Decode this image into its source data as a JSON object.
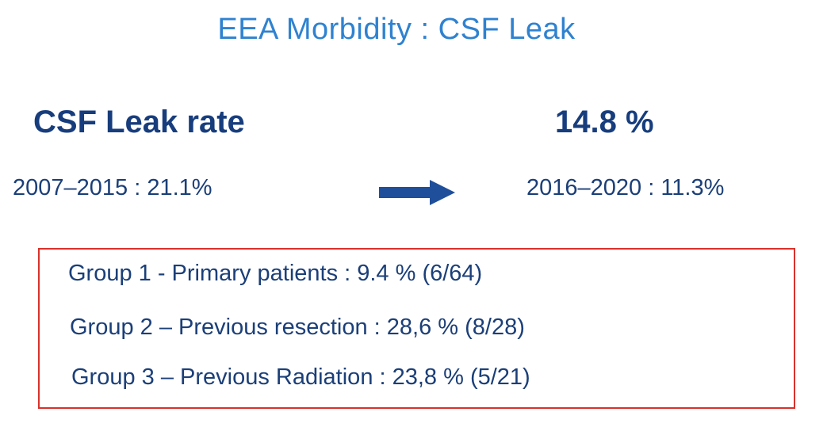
{
  "slide": {
    "title": "EEA Morbidity : CSF Leak",
    "rate_label": "CSF Leak rate",
    "rate_value": "14.8 %",
    "period_before": "2007–2015  : 21.1%",
    "period_after": "2016–2020 : 11.3%",
    "arrow_icon": "right-arrow-icon",
    "accent_title_color": "#2f82d0",
    "text_color": "#1b3f78",
    "box_border_color": "#d9312b",
    "groups": [
      {
        "label": "Group 1 - Primary patients : 9.4 % (6/64)"
      },
      {
        "label": "Group 2 – Previous resection : 28,6 % (8/28)"
      },
      {
        "label": "Group 3 – Previous Radiation :  23,8 % (5/21)"
      }
    ]
  }
}
